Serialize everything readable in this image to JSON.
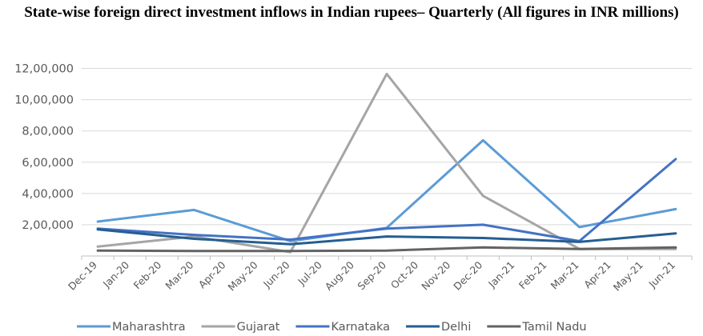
{
  "chart_data": {
    "type": "line",
    "title": "State-wise foreign direct investment inflows in Indian rupees– Quarterly (All figures in INR millions)",
    "xlabel": "",
    "ylabel": "",
    "ylim": [
      0,
      1300000
    ],
    "yticks": [
      200000,
      400000,
      600000,
      800000,
      1000000,
      1200000
    ],
    "ytick_labels": [
      "2,00,000",
      "4,00,000",
      "6,00,000",
      "8,00,000",
      "10,00,000",
      "12,00,000"
    ],
    "categories": [
      "Dec-19",
      "Jan-20",
      "Feb-20",
      "Mar-20",
      "Apr-20",
      "May-20",
      "Jun-20",
      "Jul-20",
      "Aug-20",
      "Sep-20",
      "Oct-20",
      "Nov-20",
      "Dec-20",
      "Jan-21",
      "Feb-21",
      "Mar-21",
      "Apr-21",
      "May-21",
      "Jun-21"
    ],
    "grid": true,
    "legend_position": "bottom",
    "series": [
      {
        "name": "Maharashtra",
        "color": "#5B9BD5",
        "points": [
          [
            "Dec-19",
            220000
          ],
          [
            "Mar-20",
            295000
          ],
          [
            "Jun-20",
            95000
          ],
          [
            "Sep-20",
            180000
          ],
          [
            "Dec-20",
            740000
          ],
          [
            "Mar-21",
            185000
          ],
          [
            "Jun-21",
            300000
          ]
        ]
      },
      {
        "name": "Gujarat",
        "color": "#A5A5A5",
        "points": [
          [
            "Dec-19",
            60000
          ],
          [
            "Mar-20",
            125000
          ],
          [
            "Jun-20",
            25000
          ],
          [
            "Sep-20",
            1165000
          ],
          [
            "Dec-20",
            385000
          ],
          [
            "Mar-21",
            45000
          ],
          [
            "Jun-21",
            45000
          ]
        ]
      },
      {
        "name": "Karnataka",
        "color": "#4472C4",
        "points": [
          [
            "Dec-19",
            175000
          ],
          [
            "Mar-20",
            135000
          ],
          [
            "Jun-20",
            105000
          ],
          [
            "Sep-20",
            175000
          ],
          [
            "Dec-20",
            200000
          ],
          [
            "Mar-21",
            95000
          ],
          [
            "Jun-21",
            620000
          ]
        ]
      },
      {
        "name": "Delhi",
        "color": "#255E91",
        "points": [
          [
            "Dec-19",
            170000
          ],
          [
            "Mar-20",
            110000
          ],
          [
            "Jun-20",
            75000
          ],
          [
            "Sep-20",
            125000
          ],
          [
            "Dec-20",
            115000
          ],
          [
            "Mar-21",
            90000
          ],
          [
            "Jun-21",
            145000
          ]
        ]
      },
      {
        "name": "Tamil Nadu",
        "color": "#636363",
        "points": [
          [
            "Dec-19",
            35000
          ],
          [
            "Mar-20",
            32000
          ],
          [
            "Jun-20",
            32000
          ],
          [
            "Sep-20",
            35000
          ],
          [
            "Dec-20",
            55000
          ],
          [
            "Mar-21",
            45000
          ],
          [
            "Jun-21",
            55000
          ]
        ]
      }
    ]
  }
}
